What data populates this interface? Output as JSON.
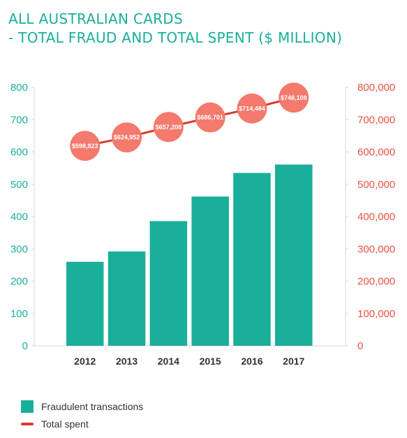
{
  "title_lines": [
    "ALL AUSTRALIAN CARDS",
    "- TOTAL FRAUD AND TOTAL SPENT ($ MILLION)"
  ],
  "colors": {
    "bars": "#1aaf9a",
    "line": "#d73a2c",
    "markers": "#f37a6c",
    "left_axis": "#1aaf9a",
    "right_axis": "#e8533f"
  },
  "chart_data": {
    "type": "bar",
    "title": "ALL AUSTRALIAN CARDS - TOTAL FRAUD AND TOTAL SPENT ($ MILLION)",
    "categories": [
      "2012",
      "2013",
      "2014",
      "2015",
      "2016",
      "2017"
    ],
    "series": [
      {
        "name": "Fraudulent transactions",
        "type": "bar",
        "axis": "left",
        "values": [
          260,
          292,
          386,
          462,
          535,
          561
        ]
      },
      {
        "name": "Total spent",
        "type": "line",
        "axis": "right",
        "values": [
          598823,
          624952,
          657208,
          686701,
          714484,
          748108
        ],
        "labels": [
          "$598,823",
          "$624,952",
          "$657,208",
          "$686,701",
          "$714,484",
          "$748,108"
        ]
      }
    ],
    "ylim_left": [
      0,
      800
    ],
    "yticks_left": [
      "0",
      "100",
      "200",
      "300",
      "400",
      "500",
      "600",
      "700",
      "800"
    ],
    "ylim_right": [
      0,
      800000
    ],
    "yticks_right": [
      "0",
      "100,000",
      "200,000",
      "300,000",
      "400,000",
      "500,000",
      "600,000",
      "700,000",
      "800,000"
    ],
    "line_offset_right": 20000,
    "legend_position": "bottom-left",
    "grid": false
  },
  "legend": {
    "items": [
      {
        "label": "Fraudulent transactions"
      },
      {
        "label": "Total spent"
      }
    ]
  }
}
